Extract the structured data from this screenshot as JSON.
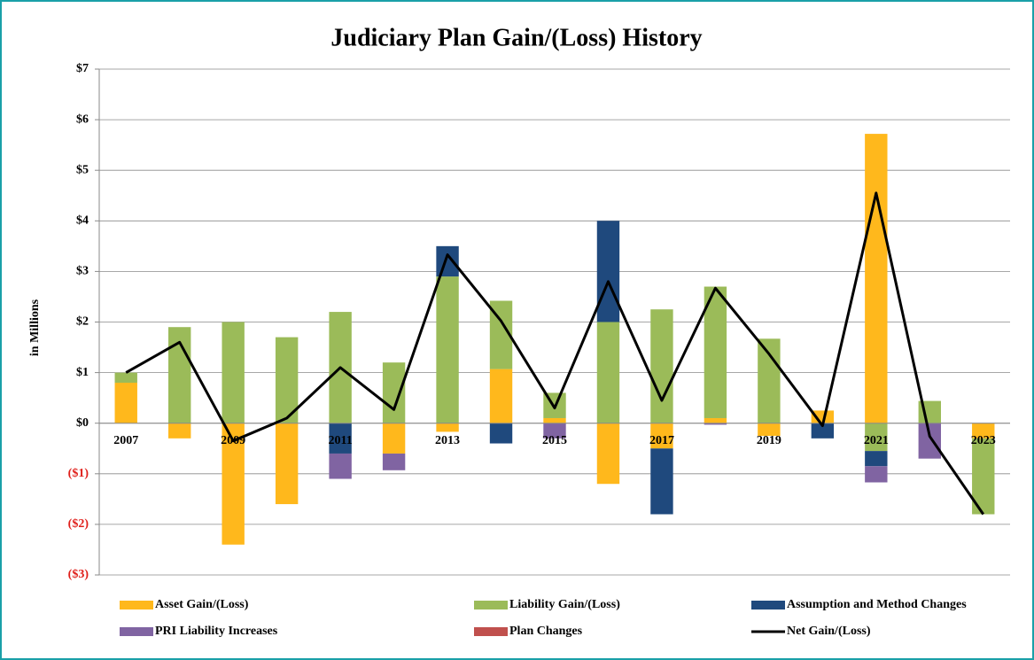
{
  "chart_data": {
    "type": "bar",
    "title": "Judiciary Plan Gain/(Loss) History",
    "y_label": "in Millions",
    "categories": [
      "2007",
      null,
      "2009",
      null,
      "2011",
      null,
      "2013",
      null,
      "2015",
      null,
      "2017",
      null,
      "2019",
      null,
      "2021",
      null,
      "2023"
    ],
    "ylim": [
      -3,
      7
    ],
    "yticks": [
      {
        "value": -3,
        "label": "($3)"
      },
      {
        "value": -2,
        "label": "($2)"
      },
      {
        "value": -1,
        "label": "($1)"
      },
      {
        "value": 0,
        "label": "$0"
      },
      {
        "value": 1,
        "label": "$1"
      },
      {
        "value": 2,
        "label": "$2"
      },
      {
        "value": 3,
        "label": "$3"
      },
      {
        "value": 4,
        "label": "$4"
      },
      {
        "value": 5,
        "label": "$5"
      },
      {
        "value": 6,
        "label": "$6"
      },
      {
        "value": 7,
        "label": "$7"
      }
    ],
    "grid": true,
    "stacked": true,
    "legend": "bottom",
    "series": [
      {
        "name": "Asset Gain/(Loss)",
        "color": "#FFB81C",
        "values": [
          0.8,
          -0.3,
          -2.4,
          -1.6,
          0,
          -0.6,
          -0.17,
          1.07,
          0.1,
          -1.2,
          -0.5,
          0.1,
          -0.25,
          0.25,
          5.72,
          0,
          -0.3
        ]
      },
      {
        "name": "Liability Gain/(Loss)",
        "color": "#9BBB59",
        "values": [
          0.2,
          1.9,
          2.0,
          1.7,
          2.2,
          1.2,
          2.9,
          1.35,
          0.5,
          2.0,
          2.25,
          2.6,
          1.67,
          0,
          -0.55,
          0.44,
          -1.5
        ]
      },
      {
        "name": "Assumption and Method Changes",
        "color": "#1F497D",
        "values": [
          0,
          0,
          0,
          0,
          -0.6,
          0,
          0.6,
          -0.4,
          0,
          2.0,
          -1.3,
          0,
          0,
          -0.3,
          -0.3,
          0,
          0
        ]
      },
      {
        "name": "PRI Liability Increases",
        "color": "#8064A2",
        "values": [
          0,
          0,
          0,
          0,
          -0.5,
          -0.33,
          0,
          0,
          -0.3,
          0,
          0,
          -0.03,
          0,
          0,
          -0.32,
          -0.7,
          0
        ]
      },
      {
        "name": "Plan Changes",
        "color": "#C0504D",
        "values": [
          0,
          0,
          0,
          0,
          0,
          0,
          0,
          0,
          0,
          0,
          0,
          0,
          0,
          0,
          0,
          0,
          0
        ]
      },
      {
        "name": "Net Gain/(Loss)",
        "color": "#000000",
        "type": "line",
        "values": [
          1.0,
          1.6,
          -0.35,
          0.1,
          1.1,
          0.27,
          3.33,
          2.02,
          0.3,
          2.8,
          0.45,
          2.67,
          1.37,
          -0.05,
          4.55,
          -0.26,
          -1.8
        ]
      }
    ]
  }
}
